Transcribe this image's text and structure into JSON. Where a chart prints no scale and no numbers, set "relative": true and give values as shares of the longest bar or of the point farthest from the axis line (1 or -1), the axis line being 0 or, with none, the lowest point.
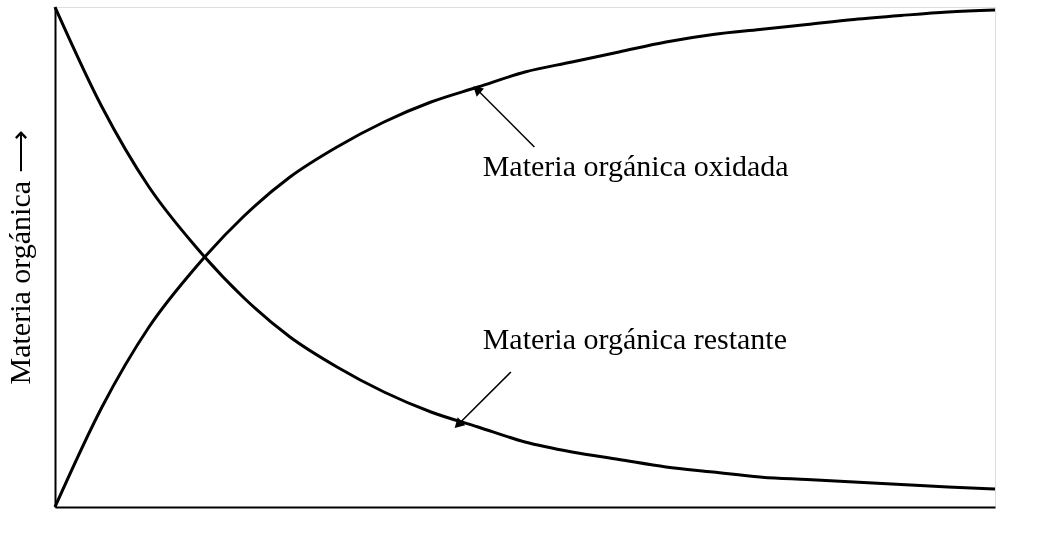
{
  "chart_data": {
    "type": "line",
    "relative": true,
    "ylabel": "Materia orgánica ⟶",
    "categories": [
      null,
      null,
      null,
      null,
      null,
      null,
      null,
      null,
      null,
      null,
      null,
      null,
      null,
      null,
      null,
      null,
      null,
      null,
      null,
      null,
      null
    ],
    "series": [
      {
        "color": "#000000",
        "values": [
          0,
          0.2,
          0.36,
          0.48,
          0.58,
          0.66,
          0.72,
          0.77,
          0.81,
          0.84,
          0.87,
          0.89,
          0.91,
          0.93,
          0.945,
          0.955,
          0.965,
          0.975,
          0.983,
          0.99,
          0.994
        ]
      },
      {
        "color": "#000000",
        "values": [
          1,
          0.8,
          0.64,
          0.52,
          0.42,
          0.34,
          0.28,
          0.23,
          0.19,
          0.16,
          0.13,
          0.11,
          0.095,
          0.08,
          0.07,
          0.06,
          0.055,
          0.05,
          0.045,
          0.04,
          0.036
        ]
      }
    ],
    "annotations": [
      "Materia orgánica oxidada",
      "Materia orgánica restante"
    ],
    "marker": "none",
    "line_style": "solid",
    "grid": false
  }
}
